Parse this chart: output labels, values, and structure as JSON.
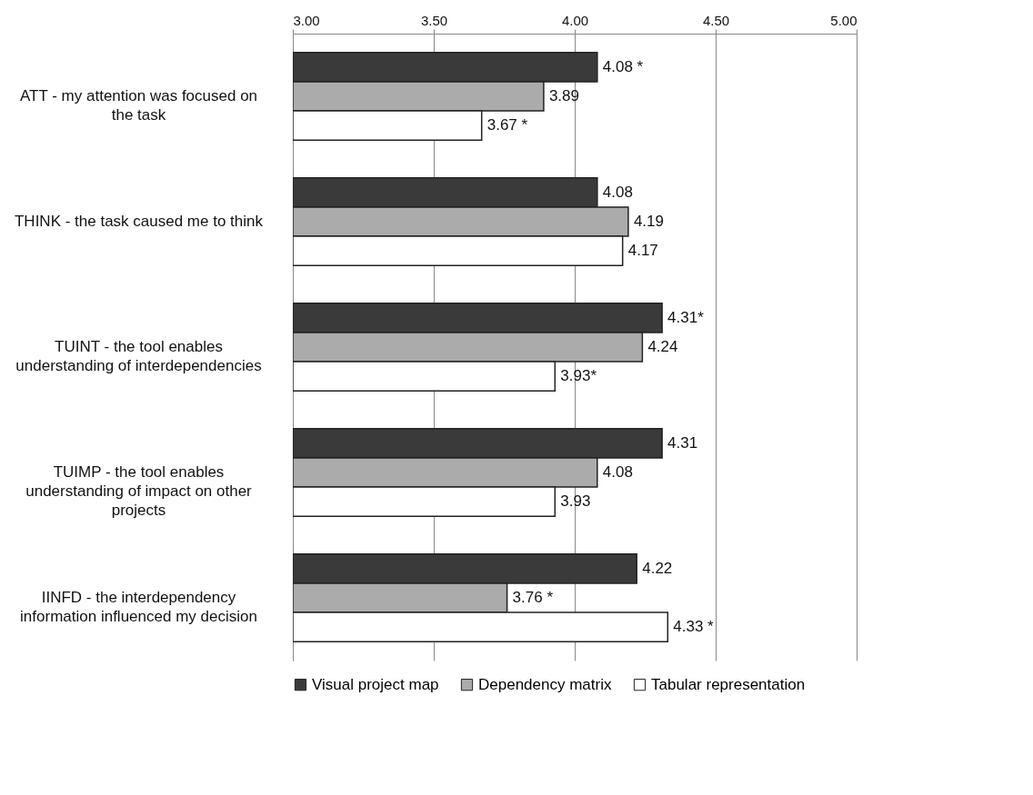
{
  "chart_data": {
    "type": "bar",
    "orientation": "horizontal",
    "categories": [
      "ATT - my attention was focused on the task",
      "THINK - the task caused me to think",
      "TUINT - the tool enables understanding of interdependencies",
      "TUIMP - the tool enables understanding of impact on other projects",
      "IINFD - the interdependency information influenced my decision"
    ],
    "series": [
      {
        "name": "Visual project map",
        "color": "#3a3a3a",
        "values": [
          4.08,
          4.08,
          4.31,
          4.31,
          4.22
        ],
        "value_labels": [
          "4.08 *",
          "4.08",
          "4.31*",
          "4.31",
          "4.22"
        ]
      },
      {
        "name": "Dependency matrix",
        "color": "#ababab",
        "values": [
          3.89,
          4.19,
          4.24,
          4.08,
          3.76
        ],
        "value_labels": [
          "3.89",
          "4.19",
          "4.24",
          "4.08",
          "3.76 *"
        ]
      },
      {
        "name": "Tabular representation",
        "color": "#ffffff",
        "values": [
          3.67,
          4.17,
          3.93,
          3.93,
          4.33
        ],
        "value_labels": [
          "3.67 *",
          "4.17",
          "3.93*",
          "3.93",
          "4.33 *"
        ]
      }
    ],
    "xlim": [
      3,
      5
    ],
    "xticks": [
      {
        "value": 3,
        "label": "3.00"
      },
      {
        "value": 3.5,
        "label": "3.50"
      },
      {
        "value": 4,
        "label": "4.00"
      },
      {
        "value": 4.5,
        "label": "4.50"
      },
      {
        "value": 5,
        "label": "5.00"
      }
    ],
    "grid": "x",
    "legend": "bottom"
  }
}
